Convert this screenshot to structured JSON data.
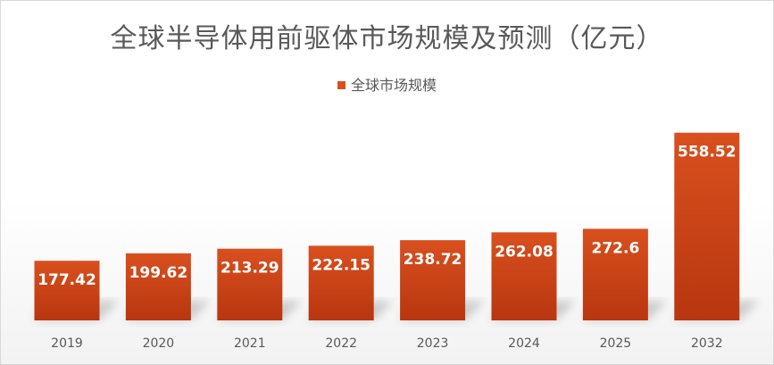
{
  "chart_data": {
    "type": "bar",
    "title": "全球半导体用前驱体市场规模及预测（亿元）",
    "categories": [
      "2019",
      "2020",
      "2021",
      "2022",
      "2023",
      "2024",
      "2025",
      "2032"
    ],
    "series": [
      {
        "name": "全球市场规模",
        "values": [
          177.42,
          199.62,
          213.29,
          222.15,
          238.72,
          262.08,
          272.6,
          558.52
        ],
        "labels": [
          "177.42",
          "199.62",
          "213.29",
          "222.15",
          "238.72",
          "262.08",
          "272.6",
          "558.52"
        ]
      }
    ],
    "xlabel": "",
    "ylabel": "",
    "ylim": [
      0,
      600
    ],
    "grid": false,
    "legend_position": "top",
    "colors": {
      "bar_top": "#d9501f",
      "bar_bottom": "#b8360f"
    }
  }
}
